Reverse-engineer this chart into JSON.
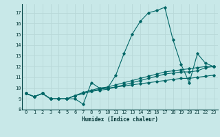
{
  "xlabel": "Humidex (Indice chaleur)",
  "bg_color": "#c8e8e8",
  "grid_color": "#b8d8d8",
  "line_color": "#006666",
  "xlim": [
    -0.5,
    23.5
  ],
  "ylim": [
    8,
    17.8
  ],
  "yticks": [
    8,
    9,
    10,
    11,
    12,
    13,
    14,
    15,
    16,
    17
  ],
  "xticks": [
    0,
    1,
    2,
    3,
    4,
    5,
    6,
    7,
    8,
    9,
    10,
    11,
    12,
    13,
    14,
    15,
    16,
    17,
    18,
    19,
    20,
    21,
    22,
    23
  ],
  "series": [
    [
      9.5,
      9.2,
      9.5,
      9.0,
      9.0,
      9.0,
      9.0,
      8.5,
      10.5,
      10.0,
      10.0,
      11.2,
      13.2,
      15.0,
      16.2,
      17.0,
      17.2,
      17.5,
      14.5,
      12.2,
      10.5,
      13.2,
      12.3,
      12.0
    ],
    [
      9.5,
      9.2,
      9.5,
      9.0,
      9.0,
      9.0,
      9.3,
      9.5,
      9.7,
      9.8,
      9.9,
      10.1,
      10.3,
      10.5,
      10.7,
      10.9,
      11.1,
      11.3,
      11.4,
      11.5,
      11.5,
      11.6,
      11.9,
      12.0
    ],
    [
      9.5,
      9.2,
      9.5,
      9.0,
      9.0,
      9.0,
      9.3,
      9.6,
      9.8,
      10.0,
      10.1,
      10.3,
      10.5,
      10.7,
      10.9,
      11.1,
      11.3,
      11.5,
      11.6,
      11.7,
      11.8,
      11.9,
      12.0,
      12.0
    ],
    [
      9.5,
      9.2,
      9.5,
      9.0,
      9.0,
      9.0,
      9.3,
      9.5,
      9.7,
      9.9,
      10.0,
      10.1,
      10.2,
      10.3,
      10.4,
      10.5,
      10.6,
      10.7,
      10.8,
      10.9,
      10.9,
      11.0,
      11.1,
      11.2
    ]
  ]
}
